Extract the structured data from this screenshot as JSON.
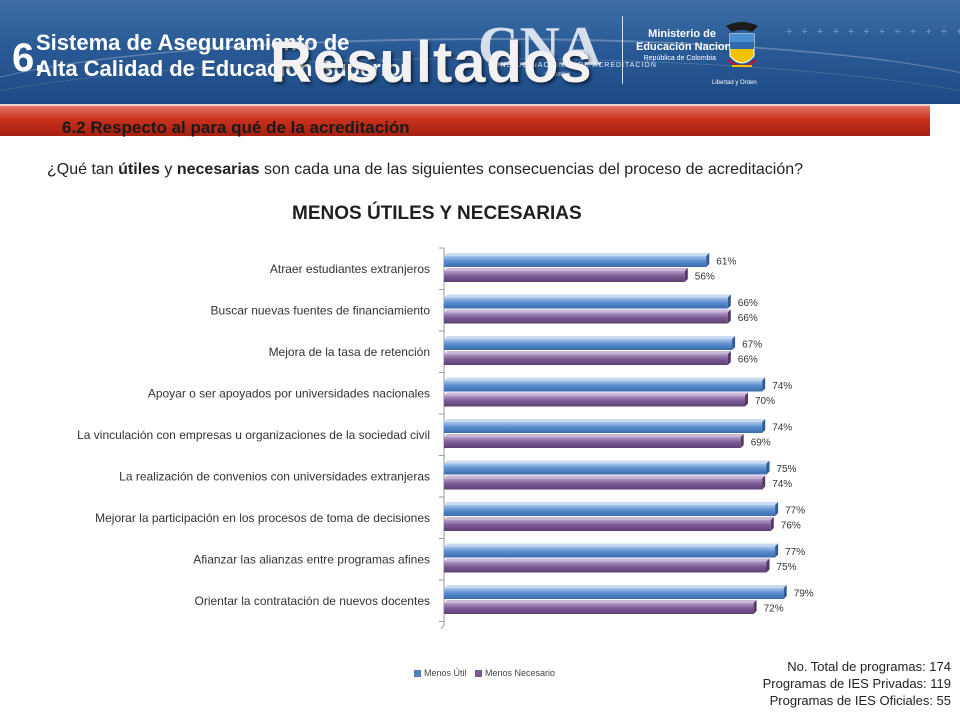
{
  "header": {
    "section_number": "6.",
    "system_title_line1": "Sistema de Aseguramiento de",
    "system_title_line2": "Alta Calidad de Educación Superior",
    "main_title": "Resultados",
    "cna_logo": "CNA",
    "cna_subtitle_1": "CONSEJO NACIONAL DE ACREDITACIÓN",
    "cna_subtitle_2": "Colombia",
    "ministry_line1": "Ministerio de",
    "ministry_line2": "Educación Nacional",
    "ministry_line3": "República de Colombia",
    "coat_caption": "Libertad y Orden"
  },
  "section": {
    "title": "6.2 Respecto al para qué de la acreditación"
  },
  "question": {
    "part1": "¿Qué tan ",
    "bold1": "útiles",
    "part2": " y ",
    "bold2": "necesarias",
    "part3": " son cada una de las siguientes consecuencias del proceso de acreditación?"
  },
  "colors": {
    "header_blue": "#2a5a95",
    "section_red": "#c8311d",
    "series_util": "#4f81bd",
    "series_necesario": "#7b5a91"
  },
  "chart_data": {
    "type": "bar",
    "orientation": "horizontal",
    "title": "MENOS ÚTILES Y NECESARIAS",
    "categories": [
      "Atraer estudiantes extranjeros",
      "Buscar nuevas fuentes de financiamiento",
      "Mejora de la tasa de retención",
      "Apoyar o ser apoyados por universidades nacionales",
      "La vinculación con empresas u organizaciones de la sociedad civil",
      "La realización de convenios con universidades extranjeras",
      "Mejorar la participación en los procesos de toma de decisiones",
      "Afianzar las alianzas entre programas afines",
      "Orientar la contratación de nuevos docentes"
    ],
    "series": [
      {
        "name": "Menos Útil",
        "values": [
          61,
          66,
          67,
          74,
          74,
          75,
          77,
          77,
          79
        ],
        "labels": [
          "61%",
          "66%",
          "67%",
          "74%",
          "74%",
          "75%",
          "77%",
          "77%",
          "79%"
        ]
      },
      {
        "name": "Menos Necesario",
        "values": [
          56,
          66,
          66,
          70,
          69,
          74,
          76,
          75,
          72
        ],
        "labels": [
          "56%",
          "66%",
          "66%",
          "70%",
          "69%",
          "74%",
          "76%",
          "75%",
          "72%"
        ]
      }
    ],
    "xlim": [
      0,
      100
    ],
    "legend_position": "bottom",
    "grid": false
  },
  "totals": {
    "line1": "No. Total de programas: 174",
    "line2": "Programas de IES Privadas: 119",
    "line3": "Programas de IES Oficiales: 55"
  }
}
